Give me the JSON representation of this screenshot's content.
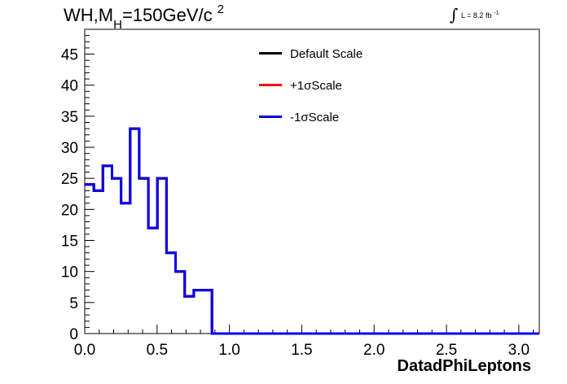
{
  "title": {
    "main": "WH,M",
    "sub": "H",
    "rest": "=150GeV/c",
    "sup": "2"
  },
  "lumi": {
    "text": "L = 8.2 fb",
    "sup": "-1"
  },
  "colors": {
    "default": "#000000",
    "plus": "#ff0000",
    "minus": "#0000ee"
  },
  "chart_data": {
    "type": "line",
    "style": "step-histogram",
    "xlabel": "DatadPhiLeptons",
    "ylabel": "",
    "xlim": [
      0,
      3.1416
    ],
    "ylim": [
      0,
      49
    ],
    "x_ticks": [
      "0.0",
      "0.5",
      "1.0",
      "1.5",
      "2.0",
      "2.5",
      "3.0"
    ],
    "x_tick_values": [
      0,
      0.5,
      1.0,
      1.5,
      2.0,
      2.5,
      3.0
    ],
    "y_ticks": [
      "0",
      "5",
      "10",
      "15",
      "20",
      "25",
      "30",
      "35",
      "40",
      "45"
    ],
    "y_tick_values": [
      0,
      5,
      10,
      15,
      20,
      25,
      30,
      35,
      40,
      45
    ],
    "bin_width": 0.0628,
    "series": [
      {
        "name": "Default Scale",
        "color": "#000000",
        "values": [
          24,
          23,
          27,
          25,
          21,
          33,
          25,
          17,
          25,
          13,
          10,
          6,
          7,
          7,
          0,
          0,
          0,
          0,
          0,
          0,
          0,
          0,
          0,
          0,
          0,
          0,
          0,
          0,
          0,
          0,
          0,
          0,
          0,
          0,
          0,
          0,
          0,
          0,
          0,
          0,
          0,
          0,
          0,
          0,
          0,
          0,
          0,
          0,
          0,
          0
        ]
      },
      {
        "name": "+1σScale",
        "color": "#ff0000",
        "values": [
          24,
          23,
          27,
          25,
          21,
          33,
          25,
          17,
          25,
          13,
          10,
          6,
          7,
          7,
          0,
          0,
          0,
          0,
          0,
          0,
          0,
          0,
          0,
          0,
          0,
          0,
          0,
          0,
          0,
          0,
          0,
          0,
          0,
          0,
          0,
          0,
          0,
          0,
          0,
          0,
          0,
          0,
          0,
          0,
          0,
          0,
          0,
          0,
          0,
          0
        ]
      },
      {
        "name": "-1σScale",
        "color": "#0000ee",
        "values": [
          24,
          23,
          27,
          25,
          21,
          33,
          25,
          17,
          25,
          13,
          10,
          6,
          7,
          7,
          0,
          0,
          0,
          0,
          0,
          0,
          0,
          0,
          0,
          0,
          0,
          0,
          0,
          0,
          0,
          0,
          0,
          0,
          0,
          0,
          0,
          0,
          0,
          0,
          0,
          0,
          0,
          0,
          0,
          0,
          0,
          0,
          0,
          0,
          0,
          0
        ]
      }
    ],
    "legend": [
      "Default Scale",
      "+1σScale",
      "-1σScale"
    ],
    "legend_position": "top-center",
    "grid": false
  }
}
